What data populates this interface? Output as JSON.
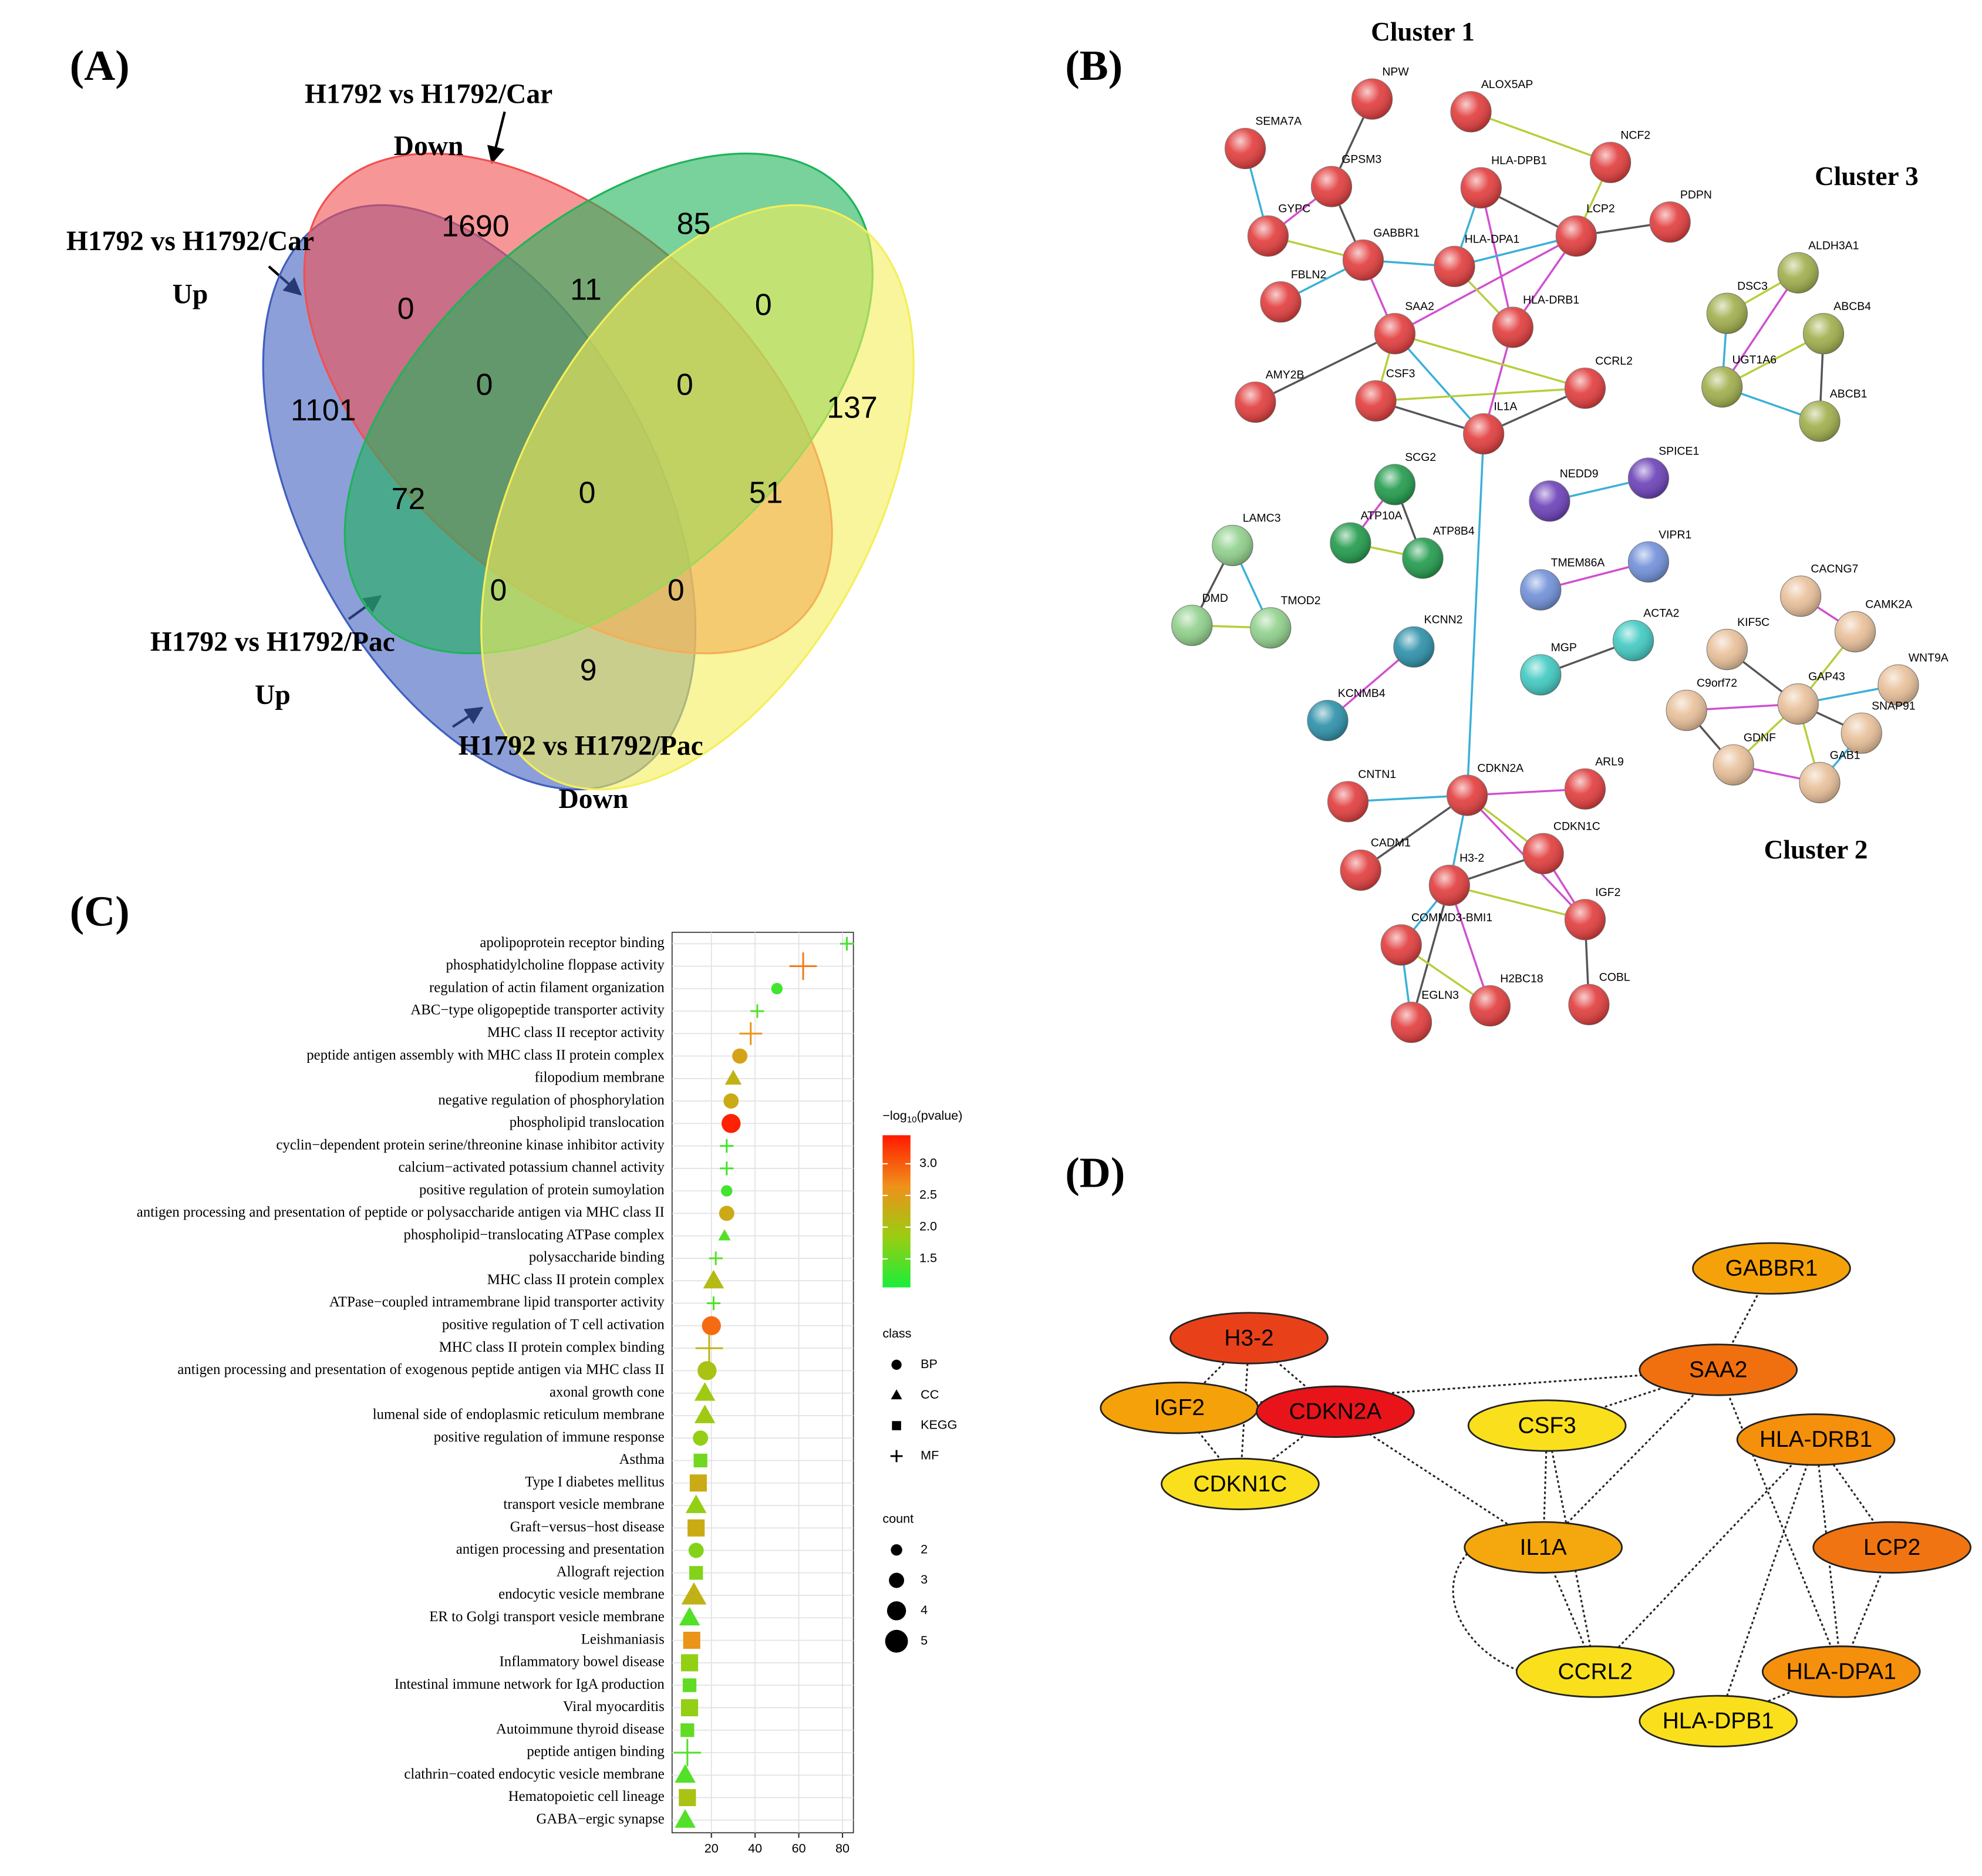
{
  "panels": {
    "a": "(A)",
    "b": "(B)",
    "c": "(C)",
    "d": "(D)"
  },
  "venn": {
    "sets": [
      {
        "title": "H1792 vs H1792/Car",
        "direction": "Up",
        "color": "#3f5fbf"
      },
      {
        "title": "H1792 vs H1792/Car",
        "direction": "Down",
        "color": "#f25050"
      },
      {
        "title": "H1792 vs H1792/Pac",
        "direction": "Up",
        "color": "#1fb35a"
      },
      {
        "title": "H1792 vs H1792/Pac",
        "direction": "Down",
        "color": "#f4ef5a"
      }
    ],
    "regions": [
      1690,
      85,
      0,
      11,
      0,
      1101,
      0,
      0,
      137,
      72,
      0,
      51,
      0,
      0,
      9
    ]
  },
  "network_b": {
    "clusters": [
      "Cluster 1",
      "Cluster 2",
      "Cluster 3"
    ],
    "nodes": [
      {
        "label": "NPW",
        "color": "#e23b3b"
      },
      {
        "label": "ALOX5AP",
        "color": "#e23b3b"
      },
      {
        "label": "SEMA7A",
        "color": "#e23b3b"
      },
      {
        "label": "GPSM3",
        "color": "#e23b3b"
      },
      {
        "label": "NCF2",
        "color": "#e23b3b"
      },
      {
        "label": "HLA-DPB1",
        "color": "#e23b3b"
      },
      {
        "label": "PDPN",
        "color": "#e23b3b"
      },
      {
        "label": "GYPC",
        "color": "#e23b3b"
      },
      {
        "label": "LCP2",
        "color": "#e23b3b"
      },
      {
        "label": "GABBR1",
        "color": "#e23b3b"
      },
      {
        "label": "HLA-DPA1",
        "color": "#e23b3b"
      },
      {
        "label": "FBLN2",
        "color": "#e23b3b"
      },
      {
        "label": "HLA-DRB1",
        "color": "#e23b3b"
      },
      {
        "label": "SAA2",
        "color": "#e23b3b"
      },
      {
        "label": "AMY2B",
        "color": "#e23b3b"
      },
      {
        "label": "CSF3",
        "color": "#e23b3b"
      },
      {
        "label": "CCRL2",
        "color": "#e23b3b"
      },
      {
        "label": "IL1A",
        "color": "#e23b3b"
      },
      {
        "label": "SCG2",
        "color": "#1f9a4a"
      },
      {
        "label": "ATP10A",
        "color": "#1f9a4a"
      },
      {
        "label": "ATP8B4",
        "color": "#1f9a4a"
      },
      {
        "label": "NEDD9",
        "color": "#6a3fb8"
      },
      {
        "label": "SPICE1",
        "color": "#6a3fb8"
      },
      {
        "label": "TMEM86A",
        "color": "#6f8fd8"
      },
      {
        "label": "VIPR1",
        "color": "#6f8fd8"
      },
      {
        "label": "LAMC3",
        "color": "#8fd08a"
      },
      {
        "label": "DMD",
        "color": "#8fd08a"
      },
      {
        "label": "TMOD2",
        "color": "#8fd08a"
      },
      {
        "label": "KCNN2",
        "color": "#2a8fa8"
      },
      {
        "label": "KCNMB4",
        "color": "#2a8fa8"
      },
      {
        "label": "MGP",
        "color": "#3ec9c0"
      },
      {
        "label": "ACTA2",
        "color": "#3ec9c0"
      },
      {
        "label": "DSC3",
        "color": "#a0ae4a"
      },
      {
        "label": "ALDH3A1",
        "color": "#a0ae4a"
      },
      {
        "label": "ABCB4",
        "color": "#a0ae4a"
      },
      {
        "label": "UGT1A6",
        "color": "#a0ae4a"
      },
      {
        "label": "ABCB1",
        "color": "#a0ae4a"
      },
      {
        "label": "CACNG7",
        "color": "#e8bf98"
      },
      {
        "label": "CAMK2A",
        "color": "#e8bf98"
      },
      {
        "label": "KIF5C",
        "color": "#e8bf98"
      },
      {
        "label": "WNT9A",
        "color": "#e8bf98"
      },
      {
        "label": "C9orf72",
        "color": "#e8bf98"
      },
      {
        "label": "GAP43",
        "color": "#e8bf98"
      },
      {
        "label": "SNAP91",
        "color": "#e8bf98"
      },
      {
        "label": "GDNF",
        "color": "#e8bf98"
      },
      {
        "label": "GAB1",
        "color": "#e8bf98"
      },
      {
        "label": "CNTN1",
        "color": "#e23b3b"
      },
      {
        "label": "CDKN2A",
        "color": "#e23b3b"
      },
      {
        "label": "ARL9",
        "color": "#e23b3b"
      },
      {
        "label": "CADM1",
        "color": "#e23b3b"
      },
      {
        "label": "CDKN1C",
        "color": "#e23b3b"
      },
      {
        "label": "H3-2",
        "color": "#e23b3b"
      },
      {
        "label": "IGF2",
        "color": "#e23b3b"
      },
      {
        "label": "COMMD3-BMI1",
        "color": "#e23b3b"
      },
      {
        "label": "H2BC18",
        "color": "#e23b3b"
      },
      {
        "label": "COBL",
        "color": "#e23b3b"
      },
      {
        "label": "EGLN3",
        "color": "#e23b3b"
      }
    ]
  },
  "network_d": {
    "nodes": [
      {
        "label": "H3-2",
        "color": "#e8411a"
      },
      {
        "label": "IGF2",
        "color": "#f5a10a"
      },
      {
        "label": "CDKN2A",
        "color": "#e8141a"
      },
      {
        "label": "CDKN1C",
        "color": "#fae01c"
      },
      {
        "label": "GABBR1",
        "color": "#f5a20a"
      },
      {
        "label": "CSF3",
        "color": "#fae01c"
      },
      {
        "label": "SAA2",
        "color": "#f07010"
      },
      {
        "label": "HLA-DRB1",
        "color": "#f5900c"
      },
      {
        "label": "IL1A",
        "color": "#f5a80d"
      },
      {
        "label": "LCP2",
        "color": "#f07512"
      },
      {
        "label": "CCRL2",
        "color": "#fae01c"
      },
      {
        "label": "HLA-DPA1",
        "color": "#f5900c"
      },
      {
        "label": "HLA-DPB1",
        "color": "#fae01c"
      }
    ]
  },
  "chart_data": {
    "type": "dot",
    "categories": [
      "apolipoprotein receptor binding",
      "phosphatidylcholine floppase activity",
      "regulation of actin filament organization",
      "ABC−type oligopeptide transporter activity",
      "MHC class II receptor activity",
      "peptide antigen assembly with MHC class II protein complex",
      "filopodium membrane",
      "negative regulation of phosphorylation",
      "phospholipid translocation",
      "cyclin−dependent protein serine/threonine kinase inhibitor activity",
      "calcium−activated potassium channel activity",
      "positive regulation of protein sumoylation",
      "antigen processing and presentation of peptide or polysaccharide antigen via MHC class II",
      "phospholipid−translocating ATPase complex",
      "polysaccharide binding",
      "MHC class II protein complex",
      "ATPase−coupled intramembrane lipid transporter activity",
      "positive regulation of T cell activation",
      "MHC class II protein complex binding",
      "antigen processing and presentation of exogenous peptide antigen via MHC class II",
      "axonal growth cone",
      "lumenal side of endoplasmic reticulum membrane",
      "positive regulation of immune response",
      "Asthma",
      "Type I diabetes mellitus",
      "transport vesicle membrane",
      "Graft−versus−host disease",
      "antigen processing and presentation",
      "Allograft rejection",
      "endocytic vesicle membrane",
      "ER to Golgi transport vesicle membrane",
      "Leishmaniasis",
      "Inflammatory bowel disease",
      "Intestinal immune network for IgA production",
      "Viral myocarditis",
      "Autoimmune thyroid disease",
      "peptide antigen binding",
      "clathrin−coated endocytic vesicle membrane",
      "Hematopoietic cell lineage",
      "GABA−ergic synapse"
    ],
    "values": [
      82,
      62,
      50,
      41,
      38,
      33,
      30,
      29,
      29,
      27,
      27,
      27,
      27,
      26,
      22,
      21,
      21,
      20,
      19,
      18,
      17,
      17,
      15,
      15,
      14,
      13,
      13,
      13,
      13,
      12,
      10,
      11,
      10,
      10,
      10,
      9,
      9,
      8,
      9,
      8
    ],
    "classes": [
      "MF",
      "MF",
      "BP",
      "MF",
      "MF",
      "BP",
      "CC",
      "BP",
      "BP",
      "MF",
      "MF",
      "BP",
      "BP",
      "CC",
      "MF",
      "CC",
      "MF",
      "BP",
      "MF",
      "BP",
      "CC",
      "CC",
      "BP",
      "KEGG",
      "KEGG",
      "CC",
      "KEGG",
      "BP",
      "KEGG",
      "CC",
      "CC",
      "KEGG",
      "KEGG",
      "KEGG",
      "KEGG",
      "KEGG",
      "MF",
      "CC",
      "KEGG",
      "CC"
    ],
    "counts": [
      2,
      5,
      2,
      2,
      4,
      3,
      3,
      3,
      4,
      2,
      2,
      2,
      3,
      2,
      2,
      4,
      2,
      4,
      5,
      4,
      4,
      4,
      3,
      3,
      4,
      4,
      4,
      3,
      3,
      5,
      4,
      4,
      4,
      3,
      4,
      3,
      5,
      4,
      4,
      4
    ],
    "color_values": [
      1.3,
      2.8,
      1.3,
      1.4,
      2.6,
      2.4,
      2.2,
      2.3,
      3.4,
      1.3,
      1.3,
      1.3,
      2.3,
      1.4,
      1.4,
      2.1,
      1.4,
      2.9,
      2.2,
      2.0,
      1.9,
      1.9,
      1.8,
      1.6,
      2.3,
      1.8,
      2.3,
      1.7,
      1.7,
      2.2,
      1.4,
      2.6,
      1.8,
      1.5,
      1.8,
      1.5,
      1.4,
      1.4,
      2.0,
      1.4
    ],
    "xlim": [
      2,
      85
    ],
    "xticks": [
      20,
      40,
      60,
      80
    ],
    "grid": true,
    "color_title": [
      "−log",
      "10",
      "(pvalue)"
    ],
    "clim": [
      1.05,
      3.45
    ],
    "cticks": [
      1.5,
      {
        "value": 2,
        "label": "2.0"
      },
      2.5,
      {
        "value": 3,
        "label": "3.0"
      }
    ],
    "colormap": [
      "#1aee3a",
      "#9acd12",
      "#f0901a",
      "#ff1a00"
    ],
    "class_title": "class",
    "class_legend": [
      "BP",
      "CC",
      "KEGG",
      "MF"
    ],
    "count_title": "count",
    "count_legend": [
      2,
      3,
      4,
      5
    ]
  }
}
